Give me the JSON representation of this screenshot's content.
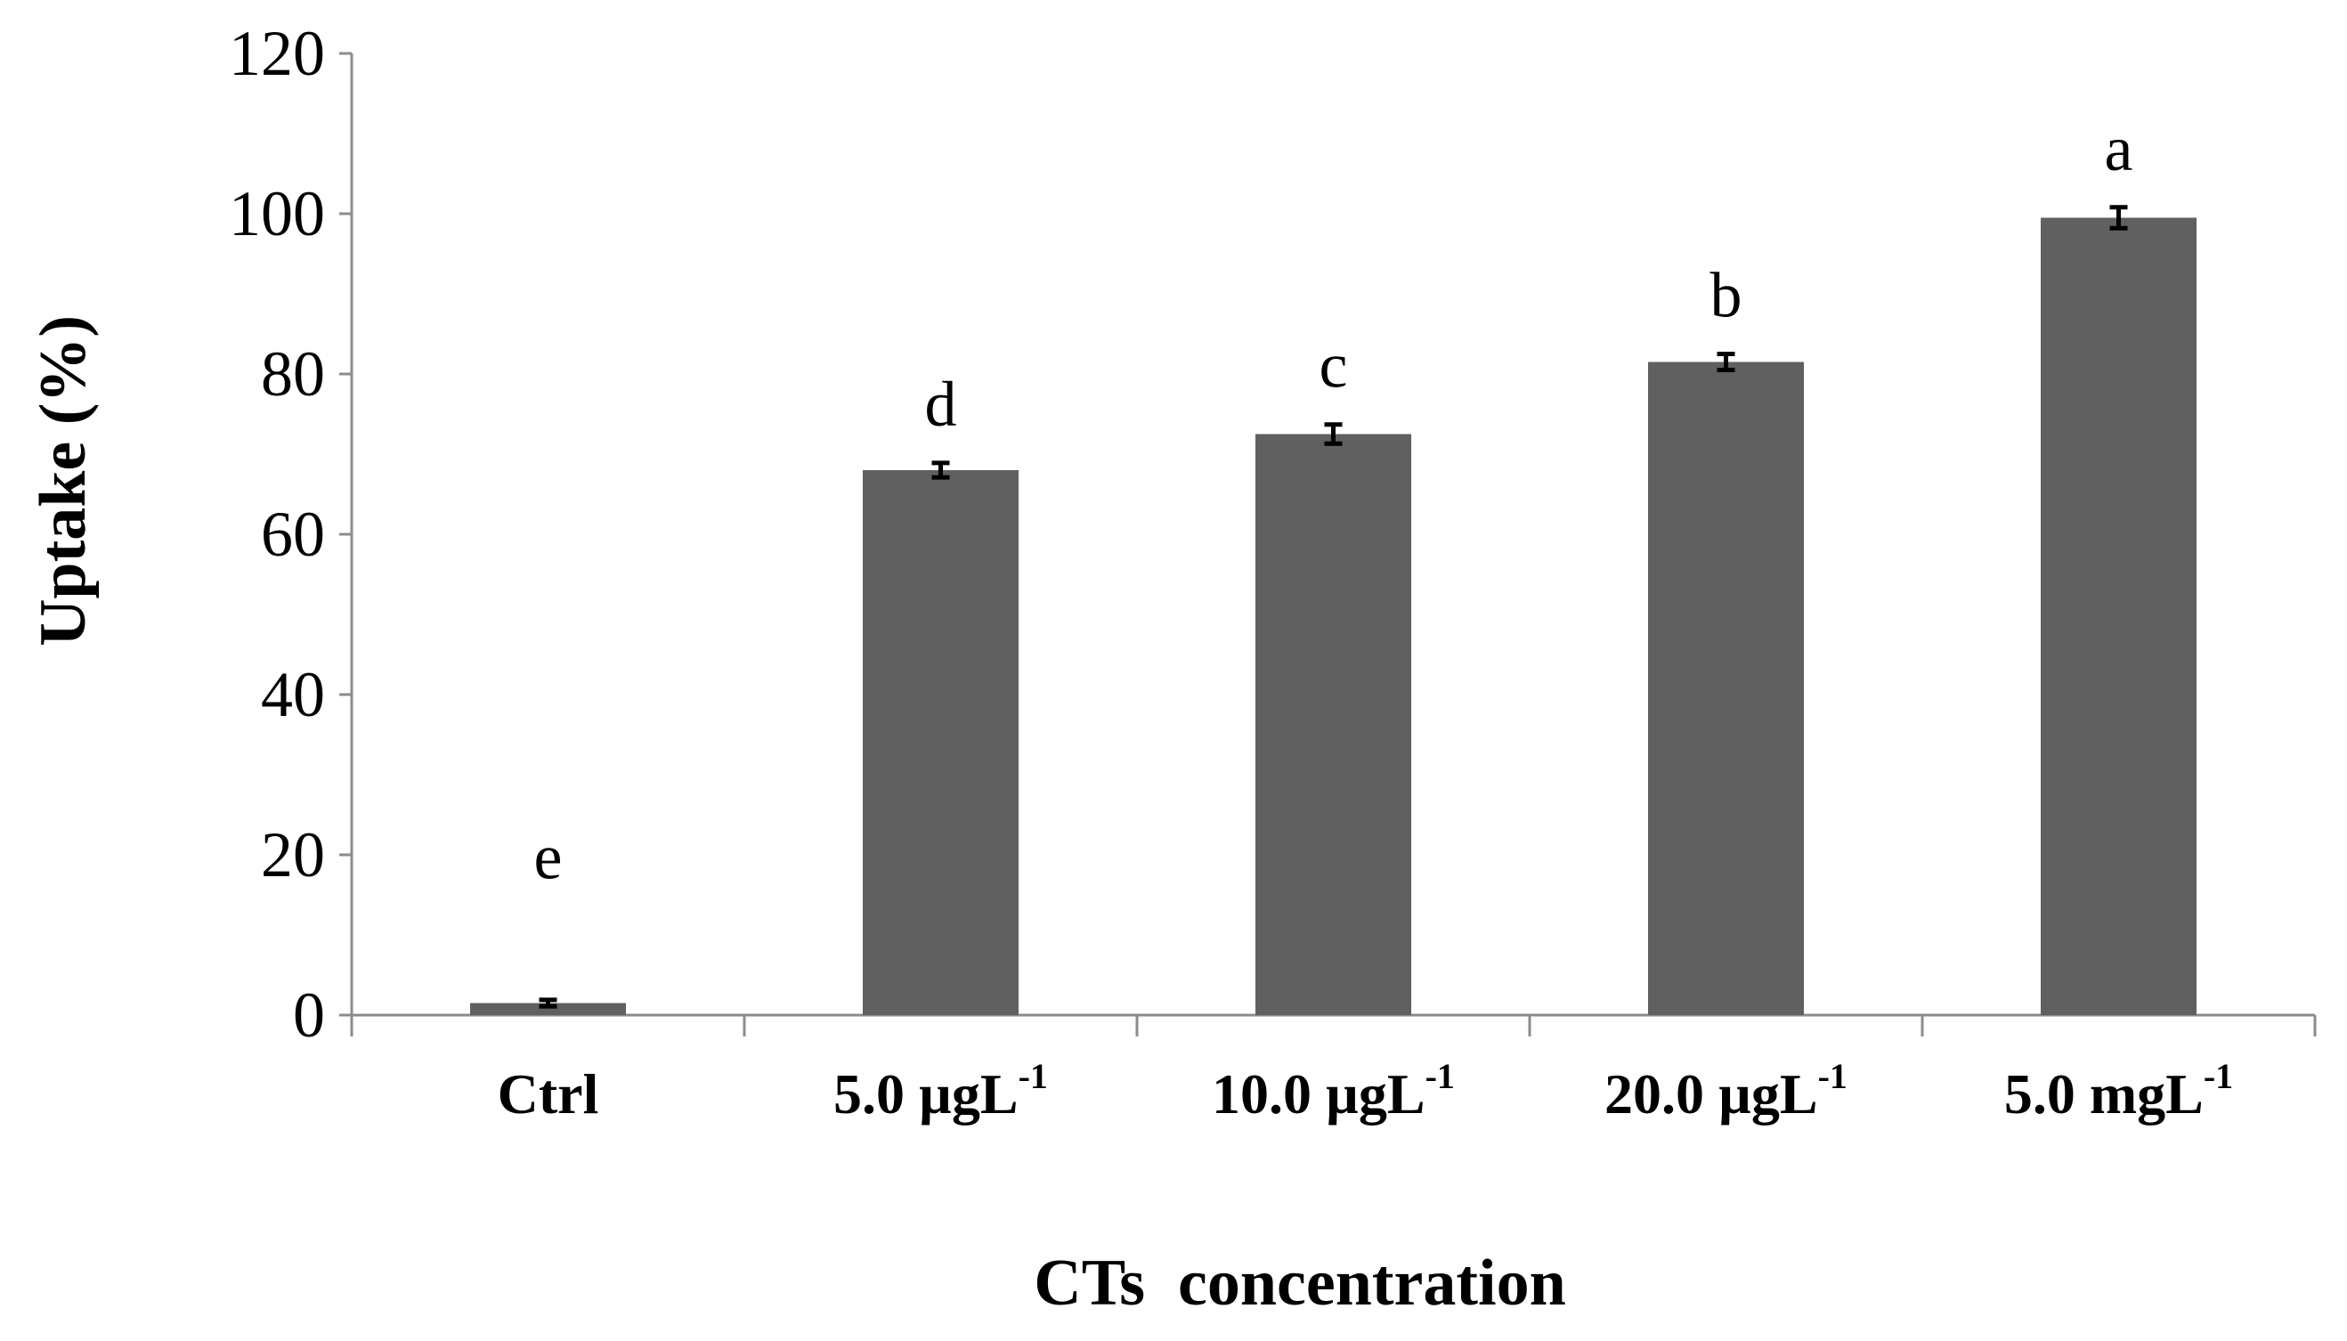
{
  "chart_data": {
    "type": "bar",
    "title": "",
    "xlabel": "CTs  concentration",
    "ylabel": "Uptake  (%)",
    "ylim": [
      0,
      120
    ],
    "yticks": [
      "0",
      "20",
      "40",
      "60",
      "80",
      "100",
      "120"
    ],
    "ytick_values": [
      0,
      20,
      40,
      60,
      80,
      100,
      120
    ],
    "categories": [
      {
        "main": "Ctrl",
        "sup": ""
      },
      {
        "main": "5.0 µgL",
        "sup": "-1"
      },
      {
        "main": "10.0 µgL",
        "sup": "-1"
      },
      {
        "main": "20.0 µgL",
        "sup": "-1"
      },
      {
        "main": "5.0 mgL",
        "sup": "-1"
      }
    ],
    "values": [
      1.5,
      68,
      72.5,
      81.5,
      99.5
    ],
    "errors": [
      0.4,
      0.9,
      1.2,
      1.0,
      1.3
    ],
    "significance_letters": [
      "e",
      "d",
      "c",
      "b",
      "a"
    ],
    "bar_color": "#606060",
    "grid": false,
    "legend": "none"
  }
}
